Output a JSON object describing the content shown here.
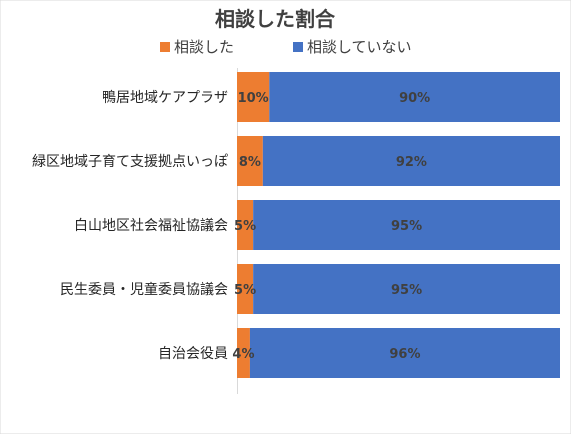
{
  "chart_data": {
    "type": "bar",
    "orientation": "horizontal",
    "stacked": true,
    "percent_stacked": true,
    "title": "相談した割合",
    "xlabel": "",
    "ylabel": "",
    "xlim": [
      0,
      100
    ],
    "grid": false,
    "legend_position": "top",
    "categories": [
      "鴨居地域ケアプラザ",
      "緑区地域子育て支援拠点いっぽ",
      "白山地区社会福祉協議会",
      "民生委員・児童委員協議会",
      "自治会役員"
    ],
    "series": [
      {
        "name": "相談した",
        "color": "#ED7D31",
        "values": [
          10,
          8,
          5,
          5,
          4
        ],
        "labels": [
          "10%",
          "8%",
          "5%",
          "5%",
          "4%"
        ]
      },
      {
        "name": "相談していない",
        "color": "#4472C4",
        "values": [
          90,
          92,
          95,
          95,
          96
        ],
        "labels": [
          "90%",
          "92%",
          "95%",
          "95%",
          "96%"
        ]
      }
    ]
  }
}
